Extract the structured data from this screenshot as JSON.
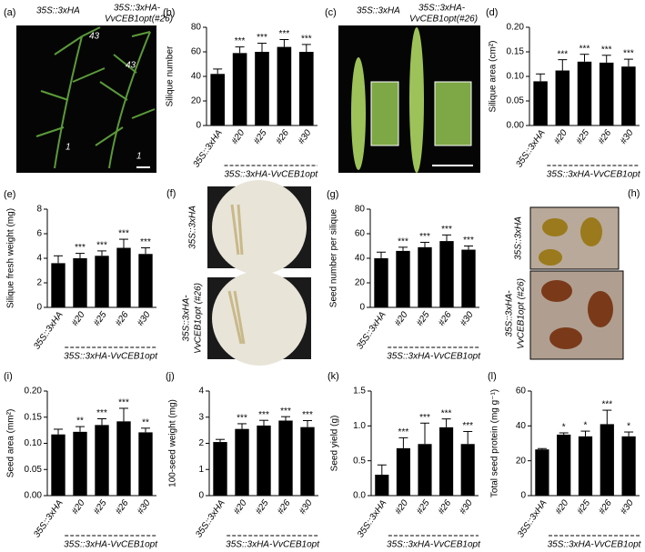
{
  "chart_data": [
    {
      "type": "bar",
      "label": "(b)",
      "ylabel": "Silique number",
      "categories": [
        "35S::3xHA",
        "#20",
        "#25",
        "#26",
        "#30"
      ],
      "values": [
        42,
        59,
        60,
        64,
        60
      ],
      "errors": [
        4,
        5,
        7,
        6,
        6
      ],
      "annotations": [
        null,
        "***",
        "***",
        "***",
        "***"
      ],
      "group_label": "35S::3xHA-VvCEB1opt",
      "color": "#000000",
      "ylim": [
        0,
        80
      ],
      "yticks": [
        0,
        20,
        40,
        60,
        80
      ]
    },
    {
      "type": "bar",
      "label": "(d)",
      "ylabel": "Silique area (cm²)",
      "categories": [
        "35S::3xHA",
        "#20",
        "#25",
        "#26",
        "#30"
      ],
      "values": [
        0.09,
        0.112,
        0.13,
        0.128,
        0.12
      ],
      "errors": [
        0.015,
        0.022,
        0.015,
        0.015,
        0.015
      ],
      "annotations": [
        null,
        "***",
        "***",
        "***",
        "***"
      ],
      "group_label": "35S::3xHA-VvCEB1opt",
      "color": "#000000",
      "ylim": [
        0,
        0.2
      ],
      "yticks": [
        {
          "value": 0,
          "label": "0.00"
        },
        0.05,
        {
          "value": 0.1,
          "label": "0.10"
        },
        0.15,
        {
          "value": 0.2,
          "label": "0.20"
        }
      ]
    },
    {
      "type": "bar",
      "label": "(e)",
      "ylabel": "Silique fresh weight (mg)",
      "categories": [
        "35S::3xHA",
        "#20",
        "#25",
        "#26",
        "#30"
      ],
      "values": [
        3.6,
        4.0,
        4.2,
        4.85,
        4.35
      ],
      "errors": [
        0.6,
        0.4,
        0.4,
        0.7,
        0.5
      ],
      "annotations": [
        null,
        "***",
        "***",
        "***",
        "***"
      ],
      "group_label": "35S::3xHA-VvCEB1opt",
      "color": "#000000",
      "ylim": [
        0,
        8
      ],
      "yticks": [
        0,
        2,
        4,
        6,
        8
      ]
    },
    {
      "type": "bar",
      "label": "(g)",
      "ylabel": "Seed number per silique",
      "categories": [
        "35S::3xHA",
        "#20",
        "#25",
        "#26",
        "#30"
      ],
      "values": [
        40,
        46,
        49,
        54,
        47
      ],
      "errors": [
        5,
        3,
        4,
        5,
        3
      ],
      "annotations": [
        null,
        "***",
        "***",
        "***",
        "***"
      ],
      "group_label": "35S::3xHA-VvCEB1opt",
      "color": "#000000",
      "ylim": [
        0,
        80
      ],
      "yticks": [
        0,
        20,
        40,
        60,
        80
      ]
    },
    {
      "type": "bar",
      "label": "(i)",
      "ylabel": "Seed area (mm²)",
      "categories": [
        "35S::3xHA",
        "#20",
        "#25",
        "#26",
        "#30"
      ],
      "values": [
        0.117,
        0.122,
        0.135,
        0.142,
        0.121
      ],
      "errors": [
        0.01,
        0.01,
        0.012,
        0.025,
        0.008
      ],
      "annotations": [
        null,
        "**",
        "***",
        "***",
        "**"
      ],
      "group_label": "35S::3xHA-VvCEB1opt",
      "color": "#000000",
      "ylim": [
        0,
        0.2
      ],
      "yticks": [
        {
          "value": 0,
          "label": "0.00"
        },
        0.05,
        {
          "value": 0.1,
          "label": "0.10"
        },
        0.15,
        {
          "value": 0.2,
          "label": "0.20"
        }
      ]
    },
    {
      "type": "bar",
      "label": "(j)",
      "ylabel": "100-seed weight (mg)",
      "categories": [
        "35S::3xHA",
        "#20",
        "#25",
        "#26",
        "#30"
      ],
      "values": [
        2.05,
        2.55,
        2.68,
        2.87,
        2.62
      ],
      "errors": [
        0.1,
        0.2,
        0.2,
        0.15,
        0.25
      ],
      "annotations": [
        null,
        "***",
        "***",
        "***",
        "***"
      ],
      "group_label": "35S::3xHA-VvCEB1opt",
      "color": "#000000",
      "ylim": [
        0,
        4
      ],
      "yticks": [
        0,
        1,
        2,
        3,
        4
      ]
    },
    {
      "type": "bar",
      "label": "(k)",
      "ylabel": "Seed yield (g)",
      "categories": [
        "35S::3xHA",
        "#20",
        "#25",
        "#26",
        "#30"
      ],
      "values": [
        0.3,
        0.68,
        0.74,
        0.98,
        0.74
      ],
      "errors": [
        0.14,
        0.15,
        0.3,
        0.12,
        0.18
      ],
      "annotations": [
        null,
        "***",
        "***",
        "***",
        "***"
      ],
      "group_label": "35S::3xHA-VvCEB1opt",
      "color": "#000000",
      "ylim": [
        0,
        1.5
      ],
      "yticks": [
        {
          "value": 0,
          "label": "0.0"
        },
        0.5,
        {
          "value": 1,
          "label": "1.0"
        },
        1.5
      ]
    },
    {
      "type": "bar",
      "label": "(l)",
      "ylabel": "Total seed protein (mg g⁻¹)",
      "categories": [
        "35S::3xHA",
        "#20",
        "#25",
        "#26",
        "#30"
      ],
      "values": [
        26.5,
        35,
        34,
        41,
        34
      ],
      "errors": [
        0.5,
        1,
        3,
        8,
        2.5
      ],
      "annotations": [
        null,
        "*",
        "*",
        "***",
        "*"
      ],
      "group_label": "35S::3xHA-VvCEB1opt",
      "color": "#000000",
      "ylim": [
        0,
        60
      ],
      "yticks": [
        0,
        20,
        40,
        60
      ]
    }
  ],
  "photos": [
    {
      "label": "(a)",
      "texts": [
        "35S::3xHA",
        "35S::3xHA-",
        "VvCEB1opt(#26)",
        "43",
        "43",
        "1",
        "1"
      ]
    },
    {
      "label": "(c)",
      "texts": [
        "35S::3xHA",
        "35S::3xHA-",
        "VvCEB1opt(#26)"
      ]
    },
    {
      "label": "(f)",
      "texts": [
        "35S::3xHA",
        "35S::3xHA-",
        "VvCEB1opt (#26)"
      ]
    },
    {
      "label": "(h)",
      "texts": [
        "35S::3xHA",
        "35S::3xHA-",
        "VvCEB1opt (#26)"
      ]
    }
  ]
}
